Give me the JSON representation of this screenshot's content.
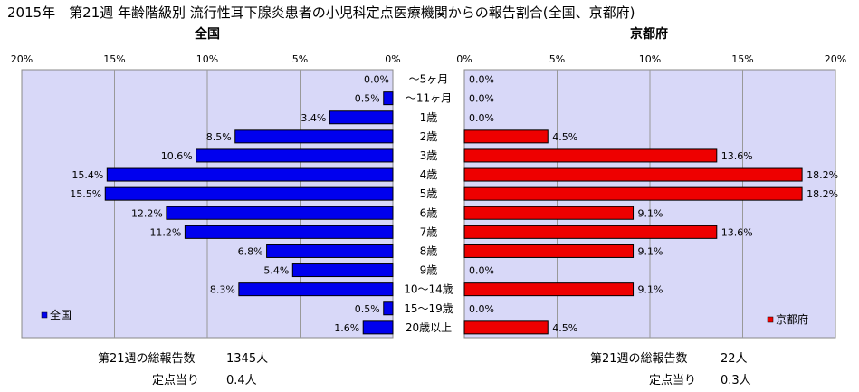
{
  "chart_data": {
    "type": "bar",
    "orientation": "horizontal",
    "title": "2015年　第21週 年齢階級別 流行性耳下腺炎患者の小児科定点医療機関からの報告割合(全国、京都府)",
    "categories": [
      "～5ヶ月",
      "～11ヶ月",
      "1歳",
      "2歳",
      "3歳",
      "4歳",
      "5歳",
      "6歳",
      "7歳",
      "8歳",
      "9歳",
      "10～14歳",
      "15～19歳",
      "20歳以上"
    ],
    "x_ticks": [
      "20%",
      "15%",
      "10%",
      "5%",
      "0%"
    ],
    "x_ticks_right": [
      "0%",
      "5%",
      "10%",
      "15%",
      "20%"
    ],
    "xlim": [
      0,
      20
    ],
    "grid": true,
    "series": [
      {
        "name": "全国",
        "panel_title": "全国",
        "color": "#0000ee",
        "values": [
          0.0,
          0.5,
          3.4,
          8.5,
          10.6,
          15.4,
          15.5,
          12.2,
          11.2,
          6.8,
          5.4,
          8.3,
          0.5,
          1.6
        ],
        "labels": [
          "0.0%",
          "0.5%",
          "3.4%",
          "8.5%",
          "10.6%",
          "15.4%",
          "15.5%",
          "12.2%",
          "11.2%",
          "6.8%",
          "5.4%",
          "8.3%",
          "0.5%",
          "1.6%"
        ],
        "legend_label": "全国",
        "total_label": "第21週の総報告数",
        "total_value": "1345人",
        "per_site_label": "定点当り",
        "per_site_value": "0.4人"
      },
      {
        "name": "京都府",
        "panel_title": "京都府",
        "color": "#ee0000",
        "values": [
          0.0,
          0.0,
          0.0,
          4.5,
          13.6,
          18.2,
          18.2,
          9.1,
          13.6,
          9.1,
          0.0,
          9.1,
          0.0,
          4.5
        ],
        "labels": [
          "0.0%",
          "0.0%",
          "0.0%",
          "4.5%",
          "13.6%",
          "18.2%",
          "18.2%",
          "9.1%",
          "13.6%",
          "9.1%",
          "0.0%",
          "9.1%",
          "0.0%",
          "4.5%"
        ],
        "legend_label": "京都府",
        "total_label": "第21週の総報告数",
        "total_value": "22人",
        "per_site_label": "定点当り",
        "per_site_value": "0.3人"
      }
    ]
  }
}
